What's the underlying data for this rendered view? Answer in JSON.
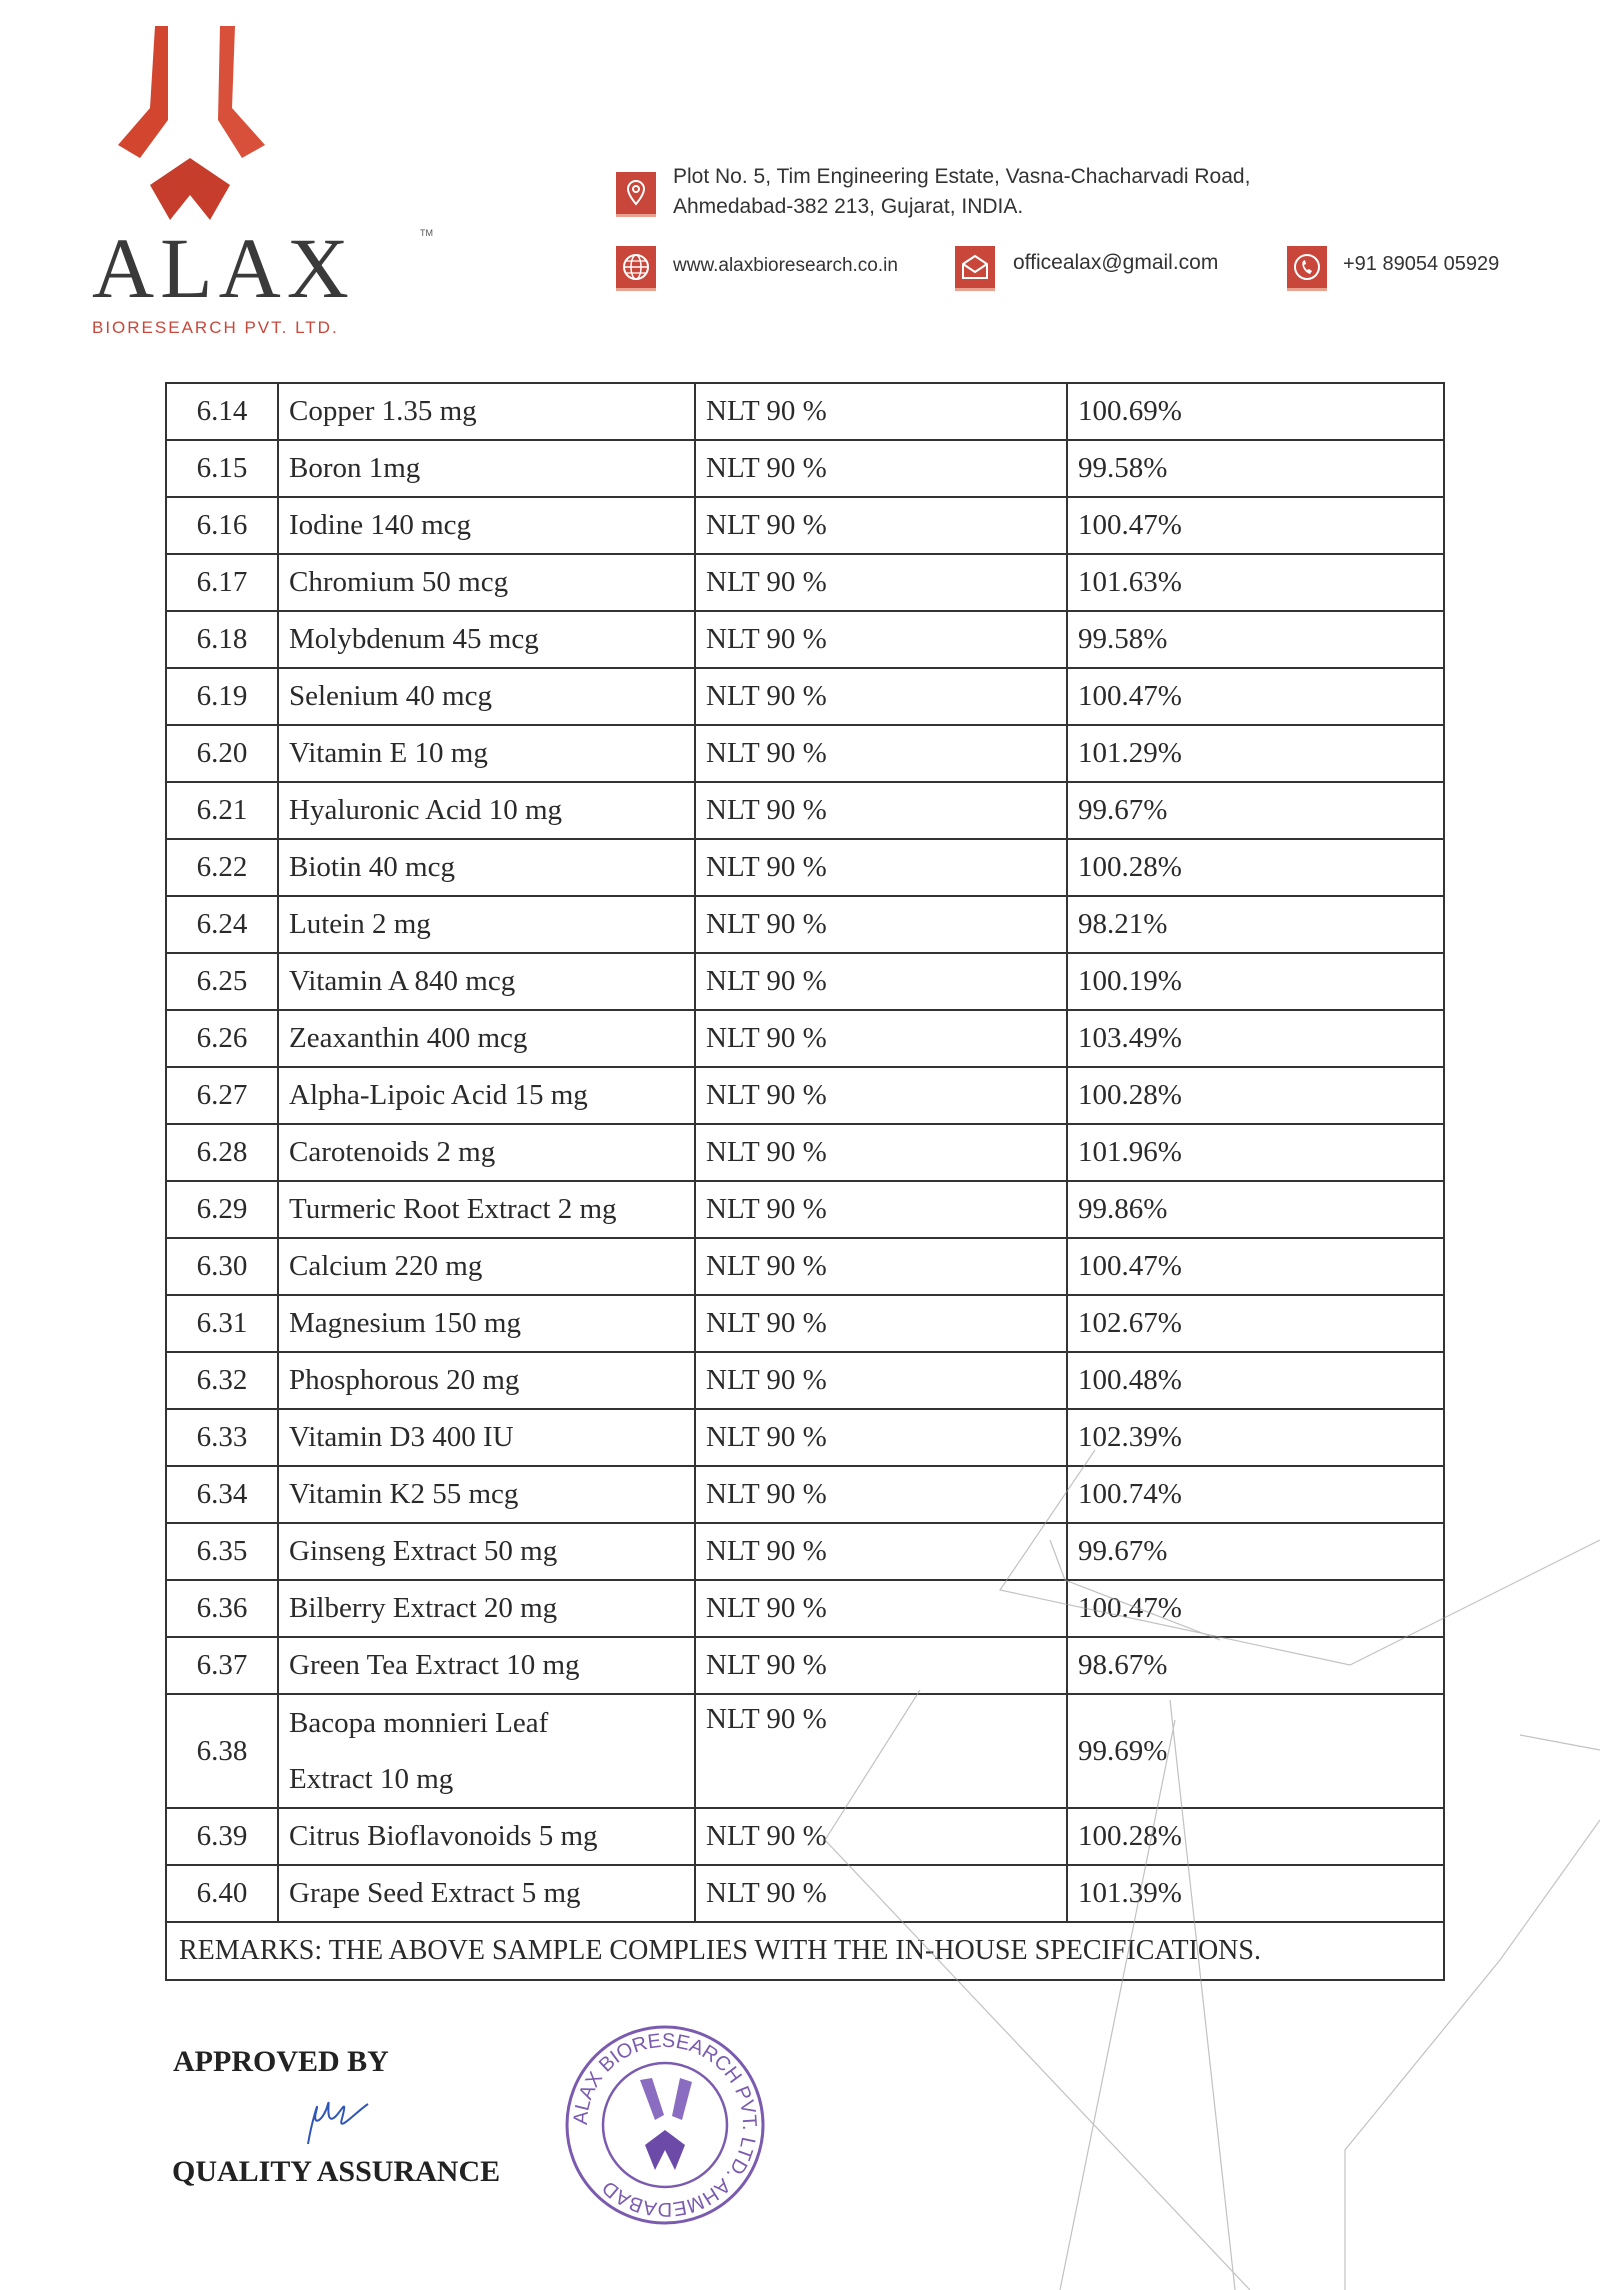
{
  "header": {
    "company_name": "ALAX",
    "company_subtitle": "BIORESEARCH PVT. LTD.",
    "trademark": "TM",
    "address_line1": "Plot No. 5, Tim Engineering Estate, Vasna-Chacharvadi Road,",
    "address_line2": "Ahmedabad-382 213, Gujarat, INDIA.",
    "website": "www.alaxbioresearch.co.in",
    "email": "officealax@gmail.com",
    "phone": "+91 89054 05929",
    "brand_color": "#c8473a",
    "icons": [
      "location-pin-icon",
      "globe-icon",
      "envelope-icon",
      "phone-icon"
    ]
  },
  "table": {
    "rows": [
      {
        "no": "6.14",
        "test": "Copper 1.35 mg",
        "spec": "NLT 90 %",
        "result": "100.69%"
      },
      {
        "no": "6.15",
        "test": "Boron 1mg",
        "spec": "NLT 90 %",
        "result": "99.58%"
      },
      {
        "no": "6.16",
        "test": "Iodine  140 mcg",
        "spec": "NLT 90 %",
        "result": "100.47%"
      },
      {
        "no": "6.17",
        "test": "Chromium 50 mcg",
        "spec": "NLT 90 %",
        "result": "101.63%"
      },
      {
        "no": "6.18",
        "test": "Molybdenum 45 mcg",
        "spec": "NLT 90 %",
        "result": "99.58%"
      },
      {
        "no": "6.19",
        "test": "Selenium   40 mcg",
        "spec": "NLT 90 %",
        "result": "100.47%"
      },
      {
        "no": "6.20",
        "test": "Vitamin E 10 mg",
        "spec": "NLT 90 %",
        "result": "101.29%"
      },
      {
        "no": "6.21",
        "test": "Hyaluronic Acid 10 mg",
        "spec": "NLT 90 %",
        "result": "99.67%"
      },
      {
        "no": "6.22",
        "test": "Biotin 40 mcg",
        "spec": "NLT 90 %",
        "result": "100.28%"
      },
      {
        "no": "6.24",
        "test": "Lutein  2 mg",
        "spec": "NLT 90 %",
        "result": "98.21%"
      },
      {
        "no": "6.25",
        "test": "Vitamin A 840 mcg",
        "spec": "NLT 90 %",
        "result": "100.19%"
      },
      {
        "no": "6.26",
        "test": "Zeaxanthin 400 mcg",
        "spec": "NLT 90 %",
        "result": "103.49%"
      },
      {
        "no": "6.27",
        "test": "Alpha-Lipoic Acid 15 mg",
        "spec": "NLT 90 %",
        "result": "100.28%"
      },
      {
        "no": "6.28",
        "test": "Carotenoids 2 mg",
        "spec": "NLT 90 %",
        "result": "101.96%"
      },
      {
        "no": "6.29",
        "test": "Turmeric Root Extract 2 mg",
        "spec": "NLT 90 %",
        "result": "99.86%"
      },
      {
        "no": "6.30",
        "test": "Calcium 220 mg",
        "spec": "NLT 90 %",
        "result": "100.47%"
      },
      {
        "no": "6.31",
        "test": "Magnesium 150 mg",
        "spec": "NLT 90 %",
        "result": "102.67%"
      },
      {
        "no": "6.32",
        "test": "Phosphorous 20 mg",
        "spec": "NLT 90 %",
        "result": "100.48%"
      },
      {
        "no": "6.33",
        "test": "Vitamin D3 400 IU",
        "spec": "NLT 90 %",
        "result": "102.39%"
      },
      {
        "no": "6.34",
        "test": "Vitamin K2 55 mcg",
        "spec": "NLT 90 %",
        "result": "100.74%"
      },
      {
        "no": "6.35",
        "test": "Ginseng Extract 50 mg",
        "spec": "NLT 90 %",
        "result": "99.67%"
      },
      {
        "no": "6.36",
        "test": "Bilberry Extract 20 mg",
        "spec": "NLT 90 %",
        "result": "100.47%"
      },
      {
        "no": "6.37",
        "test": "Green Tea Extract 10 mg",
        "spec": "NLT 90 %",
        "result": "98.67%"
      },
      {
        "no": "6.38",
        "test_line1": "Bacopa monnieri Leaf",
        "test_line2": "Extract 10 mg",
        "spec": "NLT 90 %",
        "result": "99.69%"
      },
      {
        "no": "6.39",
        "test": "Citrus Bioflavonoids  5 mg",
        "spec": "NLT 90 %",
        "result": "100.28%"
      },
      {
        "no": "6.40",
        "test": "Grape Seed Extract 5 mg",
        "spec": "NLT 90 %",
        "result": "101.39%"
      }
    ],
    "remarks": "REMARKS: THE ABOVE SAMPLE COMPLIES WITH THE IN-HOUSE SPECIFICATIONS."
  },
  "footer": {
    "approved_by": "APPROVED BY",
    "quality_assurance": "QUALITY ASSURANCE",
    "stamp_text": "ALAX BIORESEARCH PVT. LTD. AHMEDABAD",
    "stamp_color": "#7a5bb0",
    "signature_color": "#2f55b5"
  }
}
